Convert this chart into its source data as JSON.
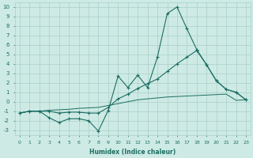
{
  "xlabel": "Humidex (Indice chaleur)",
  "xlim": [
    -0.5,
    23.5
  ],
  "ylim": [
    -3.5,
    10.5
  ],
  "xticks": [
    0,
    1,
    2,
    3,
    4,
    5,
    6,
    7,
    8,
    9,
    10,
    11,
    12,
    13,
    14,
    15,
    16,
    17,
    18,
    19,
    20,
    21,
    22,
    23
  ],
  "yticks": [
    -3,
    -2,
    -1,
    0,
    1,
    2,
    3,
    4,
    5,
    6,
    7,
    8,
    9,
    10
  ],
  "background_color": "#ceeae4",
  "grid_color": "#aacfc9",
  "line_color": "#1b6e64",
  "line1_y": [
    -1.2,
    -1.0,
    -1.0,
    -1.7,
    -2.2,
    -1.8,
    -1.8,
    -2.0,
    -3.1,
    -0.9,
    2.7,
    1.5,
    2.8,
    1.5,
    4.7,
    9.3,
    10.0,
    7.7,
    5.5,
    3.9,
    2.2,
    1.3,
    1.0,
    0.2
  ],
  "line2_y": [
    -1.2,
    -1.0,
    -1.0,
    -1.0,
    -1.2,
    -1.1,
    -1.1,
    -1.2,
    -1.2,
    -0.6,
    0.3,
    0.8,
    1.4,
    1.9,
    2.4,
    3.2,
    4.0,
    4.7,
    5.4,
    3.9,
    2.2,
    1.3,
    1.0,
    0.2
  ],
  "line3_y": [
    -1.2,
    -1.0,
    -1.0,
    -0.9,
    -0.85,
    -0.8,
    -0.7,
    -0.65,
    -0.6,
    -0.4,
    -0.2,
    0.0,
    0.2,
    0.3,
    0.4,
    0.5,
    0.55,
    0.6,
    0.65,
    0.7,
    0.75,
    0.8,
    0.15,
    0.2
  ]
}
